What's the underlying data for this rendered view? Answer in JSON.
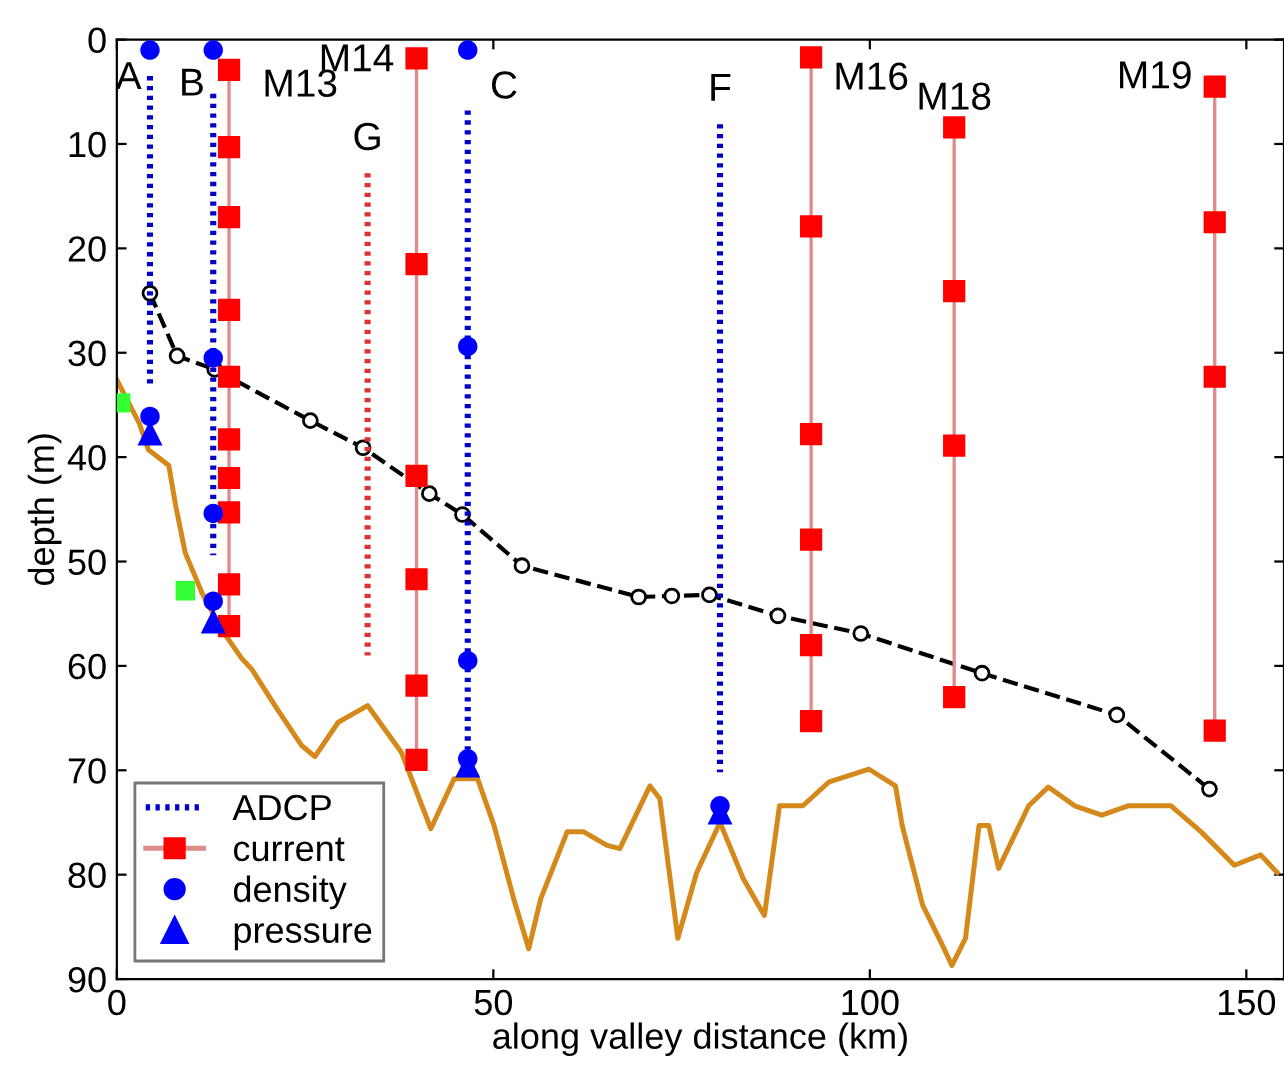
{
  "chart_data": {
    "type": "line",
    "xlabel": "along valley distance (km)",
    "ylabel": "depth (m)",
    "xlim": [
      0,
      155
    ],
    "xticks": [
      0,
      50,
      100,
      150
    ],
    "ylim": [
      90,
      0
    ],
    "yticks": [
      0,
      10,
      20,
      30,
      40,
      50,
      60,
      70,
      80,
      90
    ],
    "grid": false,
    "legend": "bottom left",
    "series": [
      {
        "color": "#d4891a",
        "marker": "none",
        "line_style": "solid",
        "x": [
          0,
          3,
          4.2,
          6.9,
          7.8,
          9.1,
          11.3,
          13.9,
          16.6,
          17.9,
          21.0,
          24.5,
          26.3,
          29.4,
          33.3,
          37.8,
          41.7,
          44.8,
          47.9,
          50.1,
          52.7,
          54.7,
          56.3,
          59.8,
          62.0,
          65.1,
          66.8,
          70.8,
          72.1,
          74.5,
          77.0,
          80.1,
          83.2,
          86.0,
          88.0,
          91.1,
          94.6,
          99.9,
          103.4,
          104.3,
          107,
          109.6,
          110.9,
          112.7,
          114.5,
          115.8,
          117.1,
          121.1,
          123.7,
          127.2,
          130.8,
          134.3,
          140.0,
          144.0,
          148.4,
          151.9,
          154.1
        ],
        "values": [
          32.6,
          36.8,
          39.3,
          40.8,
          44.6,
          49.2,
          53.0,
          56.5,
          59.3,
          60.3,
          63.8,
          67.6,
          68.7,
          65.4,
          63.8,
          68.3,
          75.6,
          70.8,
          70.8,
          75.3,
          82.3,
          87.1,
          82.3,
          75.9,
          75.9,
          77.2,
          77.5,
          71.5,
          72.7,
          86.1,
          79.8,
          75.0,
          80.4,
          83.9,
          73.4,
          73.4,
          71.1,
          69.9,
          71.5,
          75.3,
          82.9,
          86.7,
          88.7,
          86.1,
          75.3,
          75.3,
          79.4,
          73.4,
          71.6,
          73.4,
          74.3,
          73.4,
          73.4,
          75.9,
          79.1,
          78.1,
          79.8
        ]
      },
      {
        "color": "#000000",
        "marker": "circle",
        "line_style": "dashed",
        "x": [
          4.4,
          8.0,
          13.0,
          25.7,
          32.7,
          41.5,
          45.9,
          53.8,
          69.3,
          73.7,
          78.7,
          87.8,
          98.8,
          114.9,
          132.8,
          145.1
        ],
        "values": [
          24.3,
          30.3,
          31.6,
          36.5,
          39.1,
          43.5,
          45.5,
          50.4,
          53.4,
          53.3,
          53.2,
          55.2,
          56.9,
          60.7,
          64.7,
          71.8
        ]
      },
      {
        "color": "#e03030",
        "marker": "none",
        "line_style": "dotted",
        "x": [
          33.3,
          33.3
        ],
        "values": [
          12.8,
          59.0
        ]
      },
      {
        "name": "ADCP",
        "color": "#0000cc",
        "marker": "none",
        "line_style": "dotted",
        "x": [
          4.4,
          4.4,
          null,
          12.8,
          12.8,
          null,
          46.6,
          46.6,
          null,
          80.1,
          80.1
        ],
        "values": [
          3.5,
          33.0,
          null,
          5.2,
          49.4,
          null,
          6.8,
          68.0,
          null,
          8.1,
          70.2
        ]
      },
      {
        "name": "current",
        "color": "#ff0000",
        "marker": "square",
        "line_style": "solid",
        "x": [
          14.9,
          14.9,
          14.9,
          14.9,
          14.9,
          14.9,
          14.9,
          14.9,
          14.9,
          14.9,
          null,
          39.8,
          39.8,
          39.8,
          39.8,
          39.8,
          39.8,
          null,
          92.2,
          92.2,
          92.2,
          92.2,
          92.2,
          92.2,
          null,
          111.2,
          111.2,
          111.2,
          111.2,
          null,
          145.8,
          145.8,
          145.8,
          145.8
        ],
        "values": [
          2.9,
          10.3,
          17.0,
          25.9,
          32.3,
          38.3,
          42.0,
          45.3,
          52.2,
          56.2,
          null,
          1.8,
          21.5,
          41.8,
          51.7,
          61.9,
          69.0,
          null,
          1.7,
          17.9,
          37.8,
          47.9,
          58.0,
          65.3,
          null,
          8.4,
          24.1,
          38.9,
          63.0,
          null,
          4.5,
          17.5,
          32.3,
          66.2
        ]
      },
      {
        "name": "density",
        "type": "scatter",
        "color": "#0000ff",
        "marker": "circle",
        "x": [
          4.4,
          12.8,
          46.6,
          4.4,
          12.8,
          12.8,
          12.8,
          46.6,
          46.6,
          46.6,
          80.1
        ],
        "values": [
          1.0,
          1.0,
          1.0,
          36.1,
          30.5,
          45.4,
          53.8,
          29.4,
          59.5,
          68.9,
          73.4
        ]
      },
      {
        "name": "pressure",
        "type": "scatter",
        "color": "#0000ff",
        "marker": "triangle",
        "x": [
          4.4,
          12.8,
          46.6,
          80.1
        ],
        "values": [
          37.7,
          55.7,
          69.5,
          74.0
        ]
      },
      {
        "type": "scatter",
        "color": "#33ff33",
        "marker": "square",
        "x": [
          0.5,
          9.1
        ],
        "values": [
          34.8,
          52.8
        ]
      }
    ],
    "annotations": [
      {
        "text": "A",
        "x": 4.4,
        "y": 3.5
      },
      {
        "text": "B",
        "x": 12.8,
        "y": 5.2
      },
      {
        "text": "M13",
        "x": 14.9,
        "y": 2.9
      },
      {
        "text": "M14",
        "x": 39.8,
        "y": 1.8
      },
      {
        "text": "G",
        "x": 33.3,
        "y": 12.8
      },
      {
        "text": "C",
        "x": 46.6,
        "y": 6.8
      },
      {
        "text": "F",
        "x": 80.1,
        "y": 8.1
      },
      {
        "text": "M16",
        "x": 92.2,
        "y": 1.7
      },
      {
        "text": "M18",
        "x": 111.2,
        "y": 8.4
      },
      {
        "text": "M19",
        "x": 145.8,
        "y": 4.5
      }
    ]
  }
}
